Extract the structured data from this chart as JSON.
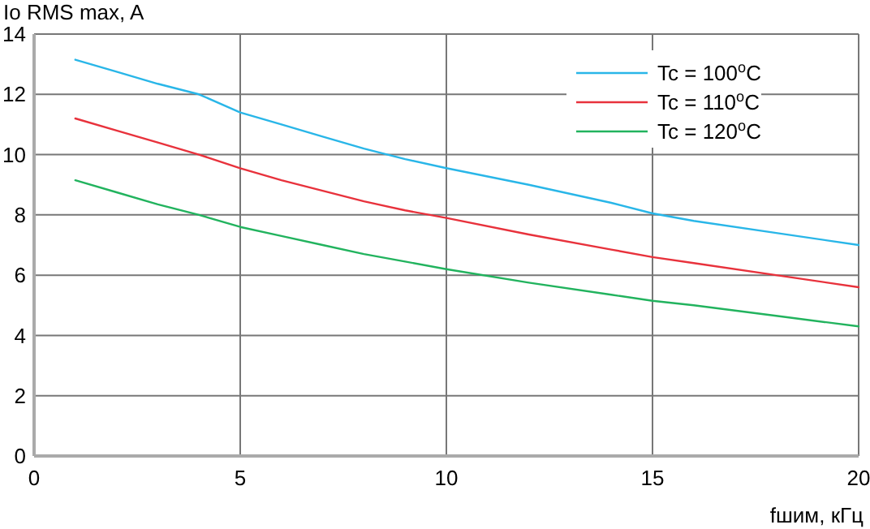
{
  "chart_data": {
    "type": "line",
    "ylabel": "Io RMS max, A",
    "xlabel": "fшим, кГц",
    "x": [
      1,
      2,
      3,
      4,
      5,
      6,
      7,
      8,
      9,
      10,
      12,
      14,
      15,
      16,
      18,
      20
    ],
    "series": [
      {
        "name": "Tc = 100$^{o}$C",
        "color": "#29b6e8",
        "values": [
          13.15,
          12.75,
          12.35,
          12.0,
          11.4,
          11.0,
          10.6,
          10.2,
          9.85,
          9.55,
          9.0,
          8.4,
          8.05,
          7.8,
          7.4,
          7.0
        ]
      },
      {
        "name": "Tc = 110$^{o}$C",
        "color": "#e8323c",
        "values": [
          11.2,
          10.8,
          10.4,
          10.0,
          9.55,
          9.15,
          8.8,
          8.45,
          8.15,
          7.9,
          7.35,
          6.85,
          6.6,
          6.4,
          6.0,
          5.6
        ]
      },
      {
        "name": "Tc = 120$^{o}$C",
        "color": "#22b35e",
        "values": [
          9.15,
          8.75,
          8.35,
          8.0,
          7.6,
          7.3,
          7.0,
          6.7,
          6.45,
          6.2,
          5.75,
          5.35,
          5.15,
          5.0,
          4.65,
          4.3
        ]
      }
    ],
    "xlim": [
      0,
      20
    ],
    "xticks": [
      0,
      5,
      10,
      15,
      20
    ],
    "ylim": [
      0,
      14
    ],
    "yticks": [
      0,
      2,
      4,
      6,
      8,
      10,
      12,
      14
    ],
    "grid": true,
    "legend": "top right",
    "line_style": "solid",
    "marker": "none"
  }
}
